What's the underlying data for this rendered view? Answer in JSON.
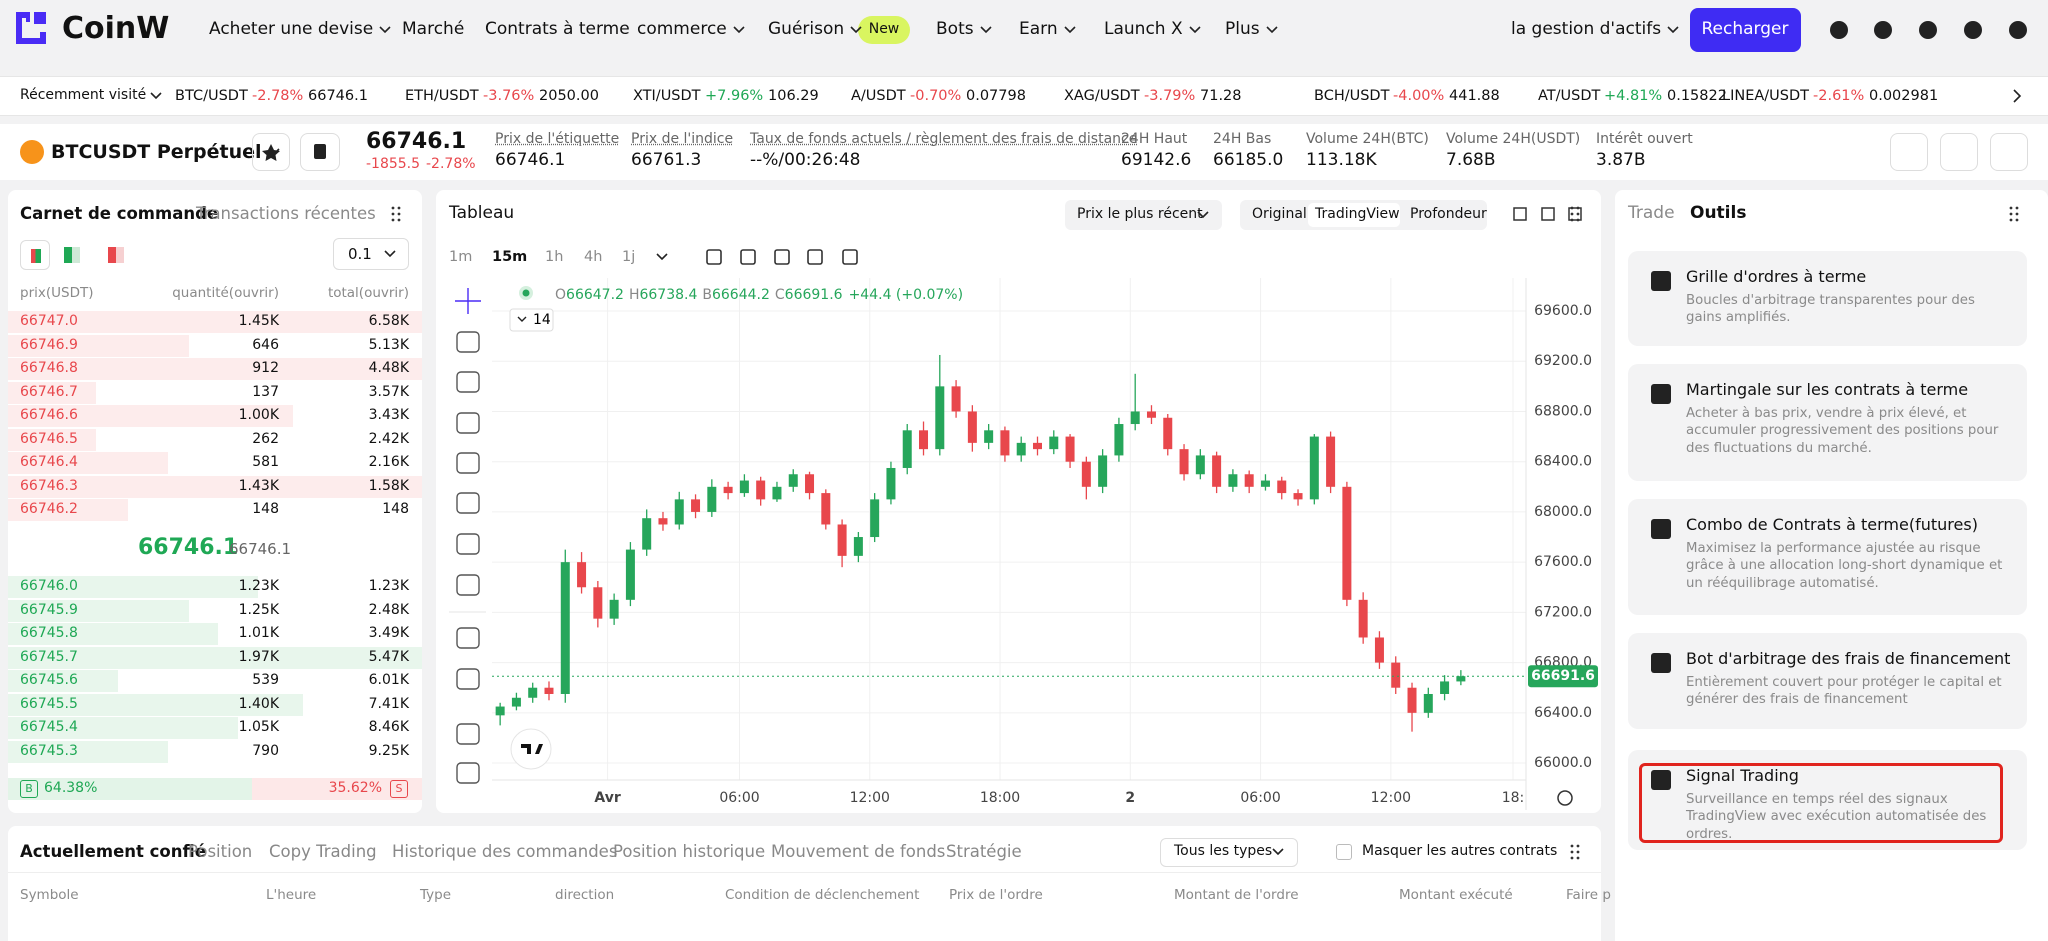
{
  "header": {
    "logo": "CoinW",
    "nav": [
      "Acheter une devise",
      "Marché",
      "Contrats à terme",
      "commerce",
      "Guérison",
      "Bots",
      "Earn",
      "Launch X",
      "Plus"
    ],
    "badge": "New",
    "assets": "la gestion d'actifs",
    "deposit": "Recharger"
  },
  "ticker": {
    "label": "Récemment visité",
    "items": [
      {
        "pair": "BTC/USDT",
        "change": "-2.78%",
        "price": "66746.1"
      },
      {
        "pair": "ETH/USDT",
        "change": "-3.76%",
        "price": "2050.00"
      },
      {
        "pair": "XTI/USDT",
        "change": "+7.96%",
        "price": "106.29"
      },
      {
        "pair": "A/USDT",
        "change": "-0.70%",
        "price": "0.07798"
      },
      {
        "pair": "XAG/USDT",
        "change": "-3.79%",
        "price": "71.28"
      },
      {
        "pair": "BCH/USDT",
        "change": "-4.00%",
        "price": "441.88"
      },
      {
        "pair": "AT/USDT",
        "change": "+4.81%",
        "price": "0.15822"
      },
      {
        "pair": "LINEA/USDT",
        "change": "-2.61%",
        "price": "0.002981"
      }
    ]
  },
  "instrument": {
    "symbol": "BTCUSDT Perpétuel",
    "price": "66746.1",
    "change": "-1855.5",
    "change_pct": "-2.78%",
    "stats": [
      {
        "label": "Prix de l'étiquette",
        "value": "66746.1"
      },
      {
        "label": "Prix de l'indice",
        "value": "66761.3"
      },
      {
        "label": "Taux de fonds actuels / règlement des frais de distance",
        "value": "--%/00:26:48"
      },
      {
        "label": "24H Haut",
        "value": "69142.6"
      },
      {
        "label": "24H Bas",
        "value": "66185.0"
      },
      {
        "label": "Volume 24H(BTC)",
        "value": "113.18K"
      },
      {
        "label": "Volume 24H(USDT)",
        "value": "7.68B"
      },
      {
        "label": "Intérêt ouvert",
        "value": "3.87B"
      }
    ]
  },
  "orderbook": {
    "tabs": [
      "Carnet de commande",
      "Transactions récentes"
    ],
    "precision": "0.1",
    "columns": [
      "prix(USDT)",
      "quantité(ouvrir)",
      "total(ouvrir)"
    ],
    "asks": [
      [
        "66747.0",
        "1.45K",
        "6.58K"
      ],
      [
        "66746.9",
        "646",
        "5.13K"
      ],
      [
        "66746.8",
        "912",
        "4.48K"
      ],
      [
        "66746.7",
        "137",
        "3.57K"
      ],
      [
        "66746.6",
        "1.00K",
        "3.43K"
      ],
      [
        "66746.5",
        "262",
        "2.42K"
      ],
      [
        "66746.4",
        "581",
        "2.16K"
      ],
      [
        "66746.3",
        "1.43K",
        "1.58K"
      ],
      [
        "66746.2",
        "148",
        "148"
      ]
    ],
    "mid_price": "66746.1",
    "mark_price": "66746.1",
    "bids": [
      [
        "66746.0",
        "1.23K",
        "1.23K"
      ],
      [
        "66745.9",
        "1.25K",
        "2.48K"
      ],
      [
        "66745.8",
        "1.01K",
        "3.49K"
      ],
      [
        "66745.7",
        "1.97K",
        "5.47K"
      ],
      [
        "66745.6",
        "539",
        "6.01K"
      ],
      [
        "66745.5",
        "1.40K",
        "7.41K"
      ],
      [
        "66745.4",
        "1.05K",
        "8.46K"
      ],
      [
        "66745.3",
        "790",
        "9.25K"
      ]
    ],
    "buy_label": "B",
    "buy_ratio": "64.38%",
    "sell_ratio": "35.62%",
    "sell_label": "S"
  },
  "chart": {
    "type": "candlestick",
    "title": "Tableau",
    "price_mode": "Prix le plus récent",
    "views": [
      "Original",
      "TradingView",
      "Profondeur"
    ],
    "intervals": [
      "1m",
      "15m",
      "1h",
      "4h",
      "1j"
    ],
    "legend": [
      "O",
      "66647.2",
      "H",
      "66738.4",
      "B",
      "66644.2",
      "C",
      "66691.6",
      "+44.4 (+0.07%)"
    ],
    "ma_length": "14",
    "up_color": "#26a65b",
    "down_color": "#e8474c",
    "candles": [
      [
        66380,
        66480,
        66300,
        66450
      ],
      [
        66450,
        66560,
        66420,
        66520
      ],
      [
        66520,
        66640,
        66480,
        66600
      ],
      [
        66600,
        66650,
        66500,
        66550
      ],
      [
        66550,
        67700,
        66480,
        67600
      ],
      [
        67600,
        67680,
        67350,
        67400
      ],
      [
        67400,
        67450,
        67080,
        67150
      ],
      [
        67150,
        67350,
        67100,
        67300
      ],
      [
        67300,
        67760,
        67250,
        67700
      ],
      [
        67700,
        68020,
        67650,
        67950
      ],
      [
        67950,
        68000,
        67850,
        67900
      ],
      [
        67900,
        68160,
        67860,
        68100
      ],
      [
        68100,
        68140,
        67950,
        68000
      ],
      [
        68000,
        68260,
        67960,
        68200
      ],
      [
        68200,
        68240,
        68100,
        68150
      ],
      [
        68150,
        68300,
        68120,
        68250
      ],
      [
        68250,
        68280,
        68050,
        68100
      ],
      [
        68100,
        68240,
        68080,
        68200
      ],
      [
        68200,
        68340,
        68160,
        68300
      ],
      [
        68300,
        68320,
        68100,
        68150
      ],
      [
        68150,
        68180,
        67860,
        67900
      ],
      [
        67900,
        67940,
        67560,
        67650
      ],
      [
        67650,
        67840,
        67600,
        67800
      ],
      [
        67800,
        68150,
        67760,
        68100
      ],
      [
        68100,
        68400,
        68060,
        68350
      ],
      [
        68350,
        68700,
        68300,
        68650
      ],
      [
        68650,
        68720,
        68450,
        68500
      ],
      [
        68500,
        69250,
        68450,
        69000
      ],
      [
        69000,
        69050,
        68750,
        68800
      ],
      [
        68800,
        68850,
        68480,
        68550
      ],
      [
        68550,
        68700,
        68500,
        68650
      ],
      [
        68650,
        68680,
        68400,
        68450
      ],
      [
        68450,
        68600,
        68400,
        68550
      ],
      [
        68550,
        68600,
        68450,
        68500
      ],
      [
        68500,
        68650,
        68460,
        68600
      ],
      [
        68600,
        68620,
        68350,
        68400
      ],
      [
        68400,
        68440,
        68100,
        68200
      ],
      [
        68200,
        68500,
        68150,
        68450
      ],
      [
        68450,
        68750,
        68400,
        68700
      ],
      [
        68700,
        69100,
        68650,
        68800
      ],
      [
        68800,
        68850,
        68700,
        68750
      ],
      [
        68750,
        68780,
        68450,
        68500
      ],
      [
        68500,
        68540,
        68250,
        68300
      ],
      [
        68300,
        68500,
        68260,
        68450
      ],
      [
        68450,
        68480,
        68150,
        68200
      ],
      [
        68200,
        68340,
        68160,
        68300
      ],
      [
        68300,
        68330,
        68150,
        68200
      ],
      [
        68200,
        68300,
        68170,
        68250
      ],
      [
        68250,
        68280,
        68100,
        68150
      ],
      [
        68150,
        68180,
        68050,
        68100
      ],
      [
        68100,
        68620,
        68060,
        68600
      ],
      [
        68600,
        68640,
        68150,
        68200
      ],
      [
        68200,
        68240,
        67250,
        67300
      ],
      [
        67300,
        67360,
        66950,
        67000
      ],
      [
        67000,
        67050,
        66750,
        66800
      ],
      [
        66800,
        66850,
        66550,
        66600
      ],
      [
        66600,
        66640,
        66250,
        66400
      ],
      [
        66400,
        66600,
        66360,
        66550
      ],
      [
        66550,
        66700,
        66500,
        66650
      ],
      [
        66650,
        66740,
        66620,
        66691.6
      ]
    ],
    "last_price": 66691.6,
    "last_price_label": "66691.6",
    "ylim": [
      65865,
      69863
    ],
    "yticks": [
      {
        "value": 66000,
        "label": "66000.0"
      },
      {
        "value": 66400,
        "label": "66400.0"
      },
      {
        "value": 66800,
        "label": "66800.0"
      },
      {
        "value": 67200,
        "label": "67200.0"
      },
      {
        "value": 67600,
        "label": "67600.0"
      },
      {
        "value": 68000,
        "label": "68000.0"
      },
      {
        "value": 68400,
        "label": "68400.0"
      },
      {
        "value": 68800,
        "label": "68800.0"
      },
      {
        "value": 69200,
        "label": "69200.0"
      },
      {
        "value": 69600,
        "label": "69600.0"
      }
    ],
    "xlim": [
      -0.5,
      63
    ],
    "xticks": [
      {
        "value": 6.6,
        "label": "Avr"
      },
      {
        "value": 14.7,
        "label": "06:00"
      },
      {
        "value": 22.7,
        "label": "12:00"
      },
      {
        "value": 30.7,
        "label": "18:00"
      },
      {
        "value": 38.7,
        "label": "2"
      },
      {
        "value": 46.7,
        "label": "06:00"
      },
      {
        "value": 54.7,
        "label": "12:00"
      },
      {
        "value": 62.2,
        "label": "18:"
      }
    ],
    "grid": true
  },
  "tools": {
    "tabs": [
      "Trade",
      "Outils"
    ],
    "cards": [
      {
        "title": "Grille d'ordres à terme",
        "desc": "Boucles d'arbitrage transparentes pour des gains amplifiés."
      },
      {
        "title": "Martingale sur les contrats à terme",
        "desc": "Acheter à bas prix, vendre à prix élevé, et accumuler progressivement des positions pour des fluctuations du marché."
      },
      {
        "title": "Combo de Contrats à terme(futures)",
        "desc": "Maximisez la performance ajustée au risque grâce à une allocation long-short dynamique et un rééquilibrage automatisé."
      },
      {
        "title": "Bot d'arbitrage des frais de financement",
        "desc": "Entièrement couvert pour protéger le capital et générer des frais de financement"
      },
      {
        "title": "Signal Trading",
        "desc": "Surveillance en temps réel des signaux TradingView avec exécution automatisée des ordres."
      }
    ]
  },
  "orders": {
    "tabs": [
      "Actuellement confié",
      "Position",
      "Copy Trading",
      "Historique des commandes",
      "Position historique",
      "Mouvement de fonds",
      "Stratégie"
    ],
    "filter": "Tous les types",
    "hide_others": "Masquer les autres contrats",
    "columns": [
      "Symbole",
      "L'heure",
      "Type",
      "direction",
      "Condition de déclenchement",
      "Prix de l'ordre",
      "Montant de l'ordre",
      "Montant exécuté",
      "Faire p"
    ]
  }
}
